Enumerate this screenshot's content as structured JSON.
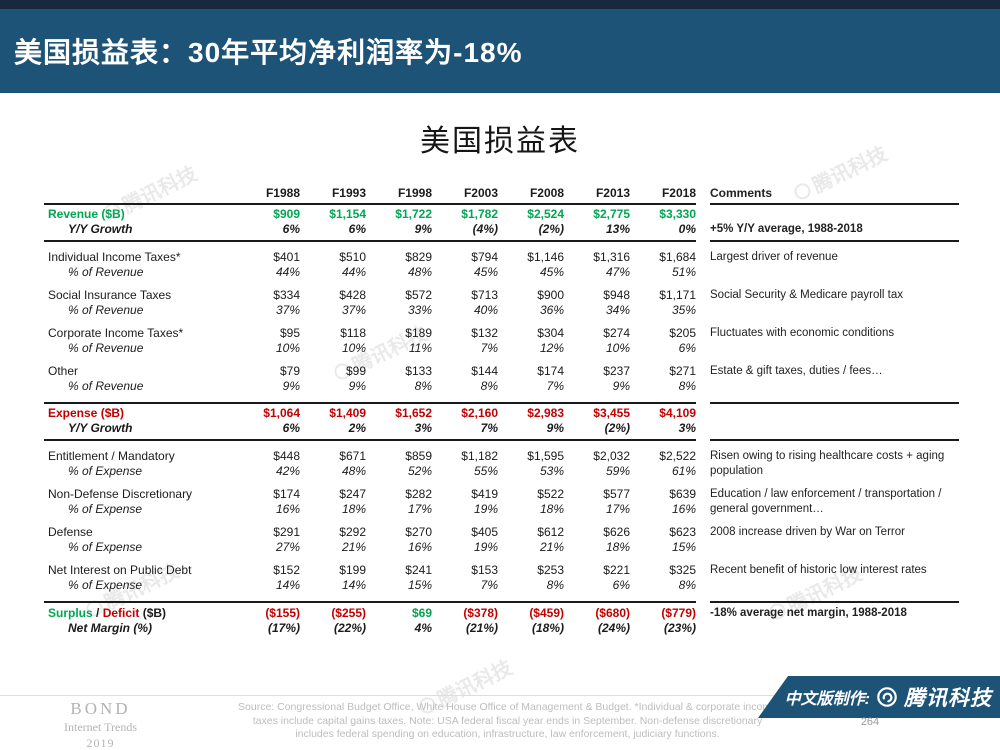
{
  "colors": {
    "header_bg": "#1D5377",
    "header_strip": "#16293E",
    "green": "#00A651",
    "red": "#C00000"
  },
  "header": {
    "title": "美国损益表：30年平均净利润率为-18%"
  },
  "main": {
    "title": "美国损益表"
  },
  "watermark": "腾讯科技",
  "table": {
    "comments_header": "Comments",
    "year_columns": [
      "F1988",
      "F1993",
      "F1998",
      "F2003",
      "F2008",
      "F2013",
      "F2018"
    ],
    "groups": [
      {
        "kind": "g-rev",
        "rows": [
          {
            "label": "Revenue ($B)",
            "lcls": "bold c-green",
            "vcls": "bold c-green",
            "values": [
              "$909",
              "$1,154",
              "$1,722",
              "$1,782",
              "$2,524",
              "$2,775",
              "$3,330"
            ]
          },
          {
            "label": "Y/Y Growth",
            "lcls": "bi sub",
            "vcls": "bi",
            "values": [
              "6%",
              "6%",
              "9%",
              "(4%)",
              "(2%)",
              "13%",
              "0%"
            ]
          }
        ],
        "comment": {
          "text": "+5% Y/Y average, 1988-2018",
          "bold": true,
          "row": 1
        }
      },
      {
        "kind": "",
        "rows": [
          {
            "label": "Individual Income Taxes*",
            "lcls": "",
            "vcls": "",
            "values": [
              "$401",
              "$510",
              "$829",
              "$794",
              "$1,146",
              "$1,316",
              "$1,684"
            ]
          },
          {
            "label": "% of Revenue",
            "lcls": "it sub",
            "vcls": "it",
            "values": [
              "44%",
              "44%",
              "48%",
              "45%",
              "45%",
              "47%",
              "51%"
            ]
          }
        ],
        "comment": {
          "text": "Largest driver of revenue",
          "bold": false,
          "row": 0
        }
      },
      {
        "kind": "",
        "rows": [
          {
            "label": "Social Insurance Taxes",
            "lcls": "",
            "vcls": "",
            "values": [
              "$334",
              "$428",
              "$572",
              "$713",
              "$900",
              "$948",
              "$1,171"
            ]
          },
          {
            "label": "% of Revenue",
            "lcls": "it sub",
            "vcls": "it",
            "values": [
              "37%",
              "37%",
              "33%",
              "40%",
              "36%",
              "34%",
              "35%"
            ]
          }
        ],
        "comment": {
          "text": "Social Security & Medicare payroll tax",
          "bold": false,
          "row": 0
        }
      },
      {
        "kind": "",
        "rows": [
          {
            "label": "Corporate Income Taxes*",
            "lcls": "",
            "vcls": "",
            "values": [
              "$95",
              "$118",
              "$189",
              "$132",
              "$304",
              "$274",
              "$205"
            ]
          },
          {
            "label": "% of Revenue",
            "lcls": "it sub",
            "vcls": "it",
            "values": [
              "10%",
              "10%",
              "11%",
              "7%",
              "12%",
              "10%",
              "6%"
            ]
          }
        ],
        "comment": {
          "text": "Fluctuates with economic conditions",
          "bold": false,
          "row": 0
        }
      },
      {
        "kind": "",
        "rows": [
          {
            "label": "Other",
            "lcls": "",
            "vcls": "",
            "values": [
              "$79",
              "$99",
              "$133",
              "$144",
              "$174",
              "$237",
              "$271"
            ]
          },
          {
            "label": "% of Revenue",
            "lcls": "it sub",
            "vcls": "it",
            "values": [
              "9%",
              "9%",
              "8%",
              "8%",
              "7%",
              "9%",
              "8%"
            ]
          }
        ],
        "comment": {
          "text": "Estate & gift taxes, duties / fees…",
          "bold": false,
          "row": 0
        }
      },
      {
        "kind": "g-exp",
        "rows": [
          {
            "label": "Expense ($B)",
            "lcls": "bold c-red",
            "vcls": "bold c-red",
            "values": [
              "$1,064",
              "$1,409",
              "$1,652",
              "$2,160",
              "$2,983",
              "$3,455",
              "$4,109"
            ]
          },
          {
            "label": "Y/Y Growth",
            "lcls": "bi sub",
            "vcls": "bi",
            "values": [
              "6%",
              "2%",
              "3%",
              "7%",
              "9%",
              "(2%)",
              "3%"
            ]
          }
        ],
        "comment": {
          "text": "",
          "bold": false,
          "row": 0
        }
      },
      {
        "kind": "",
        "rows": [
          {
            "label": "Entitlement / Mandatory",
            "lcls": "",
            "vcls": "",
            "values": [
              "$448",
              "$671",
              "$859",
              "$1,182",
              "$1,595",
              "$2,032",
              "$2,522"
            ]
          },
          {
            "label": "% of Expense",
            "lcls": "it sub",
            "vcls": "it",
            "values": [
              "42%",
              "48%",
              "52%",
              "55%",
              "53%",
              "59%",
              "61%"
            ]
          }
        ],
        "comment": {
          "text": "Risen owing to rising healthcare costs + aging population",
          "bold": false,
          "row": 0
        }
      },
      {
        "kind": "",
        "rows": [
          {
            "label": "Non-Defense Discretionary",
            "lcls": "",
            "vcls": "",
            "values": [
              "$174",
              "$247",
              "$282",
              "$419",
              "$522",
              "$577",
              "$639"
            ]
          },
          {
            "label": "% of Expense",
            "lcls": "it sub",
            "vcls": "it",
            "values": [
              "16%",
              "18%",
              "17%",
              "19%",
              "18%",
              "17%",
              "16%"
            ]
          }
        ],
        "comment": {
          "text": "Education / law enforcement / transportation / general government…",
          "bold": false,
          "row": 0
        }
      },
      {
        "kind": "",
        "rows": [
          {
            "label": "Defense",
            "lcls": "",
            "vcls": "",
            "values": [
              "$291",
              "$292",
              "$270",
              "$405",
              "$612",
              "$626",
              "$623"
            ]
          },
          {
            "label": "% of Expense",
            "lcls": "it sub",
            "vcls": "it",
            "values": [
              "27%",
              "21%",
              "16%",
              "19%",
              "21%",
              "18%",
              "15%"
            ]
          }
        ],
        "comment": {
          "text": "2008 increase driven by War on Terror",
          "bold": false,
          "row": 0
        }
      },
      {
        "kind": "",
        "rows": [
          {
            "label": "Net Interest on Public Debt",
            "lcls": "",
            "vcls": "",
            "values": [
              "$152",
              "$199",
              "$241",
              "$153",
              "$253",
              "$221",
              "$325"
            ]
          },
          {
            "label": "% of Expense",
            "lcls": "it sub",
            "vcls": "it",
            "values": [
              "14%",
              "14%",
              "15%",
              "7%",
              "8%",
              "6%",
              "8%"
            ]
          }
        ],
        "comment": {
          "text": "Recent benefit of historic low interest rates",
          "bold": false,
          "row": 0
        }
      },
      {
        "kind": "g-sur",
        "rows": [
          {
            "label_parts": [
              {
                "text": "Surplus",
                "color": "green"
              },
              {
                "text": " / ",
                "color": "black"
              },
              {
                "text": "Deficit",
                "color": "red"
              },
              {
                "text": " ($B)",
                "color": "black"
              }
            ],
            "lcls": "bold",
            "vcls": "bold",
            "vcolors": [
              "red",
              "red",
              "green",
              "red",
              "red",
              "red",
              "red"
            ],
            "values": [
              "($155)",
              "($255)",
              "$69",
              "($378)",
              "($459)",
              "($680)",
              "($779)"
            ]
          },
          {
            "label": "Net Margin (%)",
            "lcls": "bi sub",
            "vcls": "bi",
            "values": [
              "(17%)",
              "(22%)",
              "4%",
              "(21%)",
              "(18%)",
              "(24%)",
              "(23%)"
            ]
          }
        ],
        "comment": {
          "text": "-18% average net margin, 1988-2018",
          "bold": true,
          "row": 0
        }
      }
    ]
  },
  "footer": {
    "brand": {
      "name": "BOND",
      "line2": "Internet Trends",
      "line3": "2019"
    },
    "source_lines": [
      "Source:  Congressional Budget Office, White House Office of Management & Budget. *Individual & corporate income",
      "taxes include capital gains taxes.  Note: USA federal fiscal year ends in September. Non-defense discretionary",
      "includes federal spending on education, infrastructure, law enforcement, judiciary functions."
    ],
    "badge": {
      "prefix": "中文版制作:",
      "brand": "腾讯科技"
    },
    "page_number": "264"
  }
}
